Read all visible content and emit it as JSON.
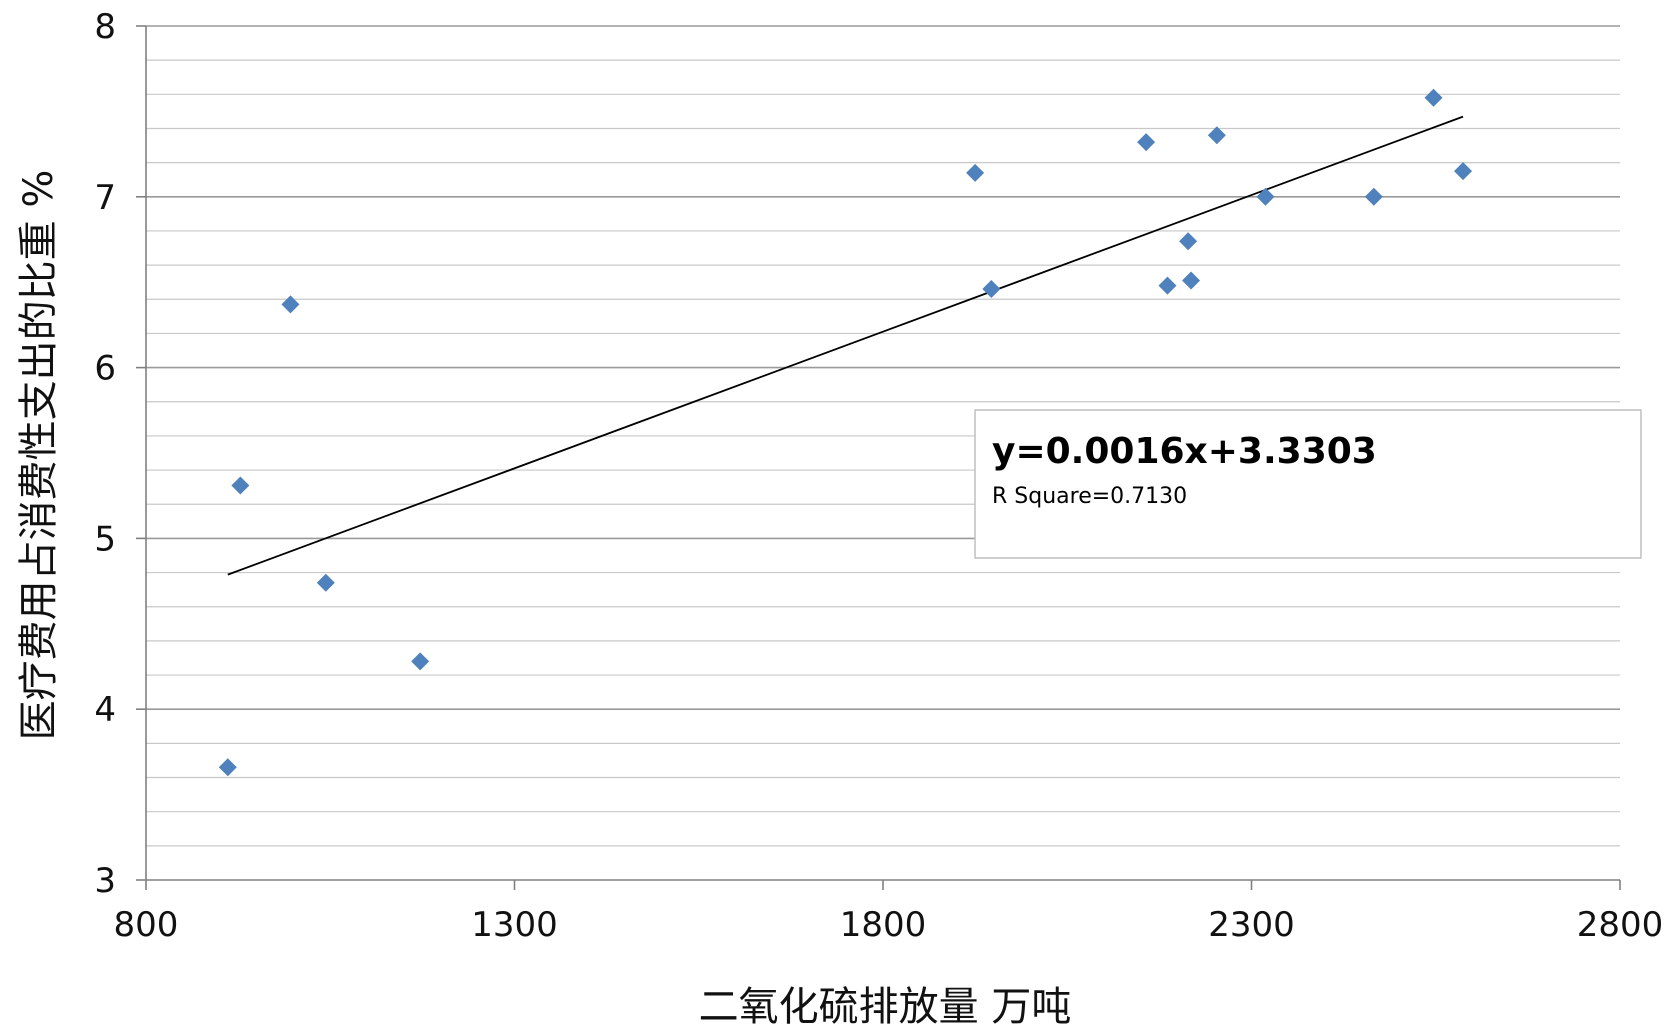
{
  "chart_data": {
    "type": "scatter",
    "xlabel": "二氧化硫排放量 万吨",
    "ylabel": "医疗费用占消费性支出的比重 %",
    "xlim": [
      800,
      2800
    ],
    "ylim": [
      3,
      8
    ],
    "x_ticks": [
      "800",
      "1300",
      "1800",
      "2300",
      "2800"
    ],
    "y_ticks": [
      "3",
      "4",
      "5",
      "6",
      "7",
      "8"
    ],
    "grid": "horizontal minor every 0.2",
    "points": [
      {
        "x": 911,
        "y": 3.66
      },
      {
        "x": 928,
        "y": 5.31
      },
      {
        "x": 996,
        "y": 6.37
      },
      {
        "x": 1044,
        "y": 4.74
      },
      {
        "x": 1172,
        "y": 4.28
      },
      {
        "x": 1925,
        "y": 7.14
      },
      {
        "x": 1947,
        "y": 6.46
      },
      {
        "x": 2157,
        "y": 7.32
      },
      {
        "x": 2186,
        "y": 6.48
      },
      {
        "x": 2214,
        "y": 6.74
      },
      {
        "x": 2218,
        "y": 6.51
      },
      {
        "x": 2253,
        "y": 7.36
      },
      {
        "x": 2319,
        "y": 7.0
      },
      {
        "x": 2466,
        "y": 7.0
      },
      {
        "x": 2547,
        "y": 7.58
      },
      {
        "x": 2587,
        "y": 7.15
      }
    ],
    "trendline": {
      "slope": 0.0016,
      "intercept": 3.3303,
      "x_start": 911,
      "x_end": 2587
    },
    "annotation": {
      "equation": "y=0.0016x+3.3303",
      "r_square": "R Square=0.7130"
    },
    "marker_color": "#4f81bd"
  }
}
